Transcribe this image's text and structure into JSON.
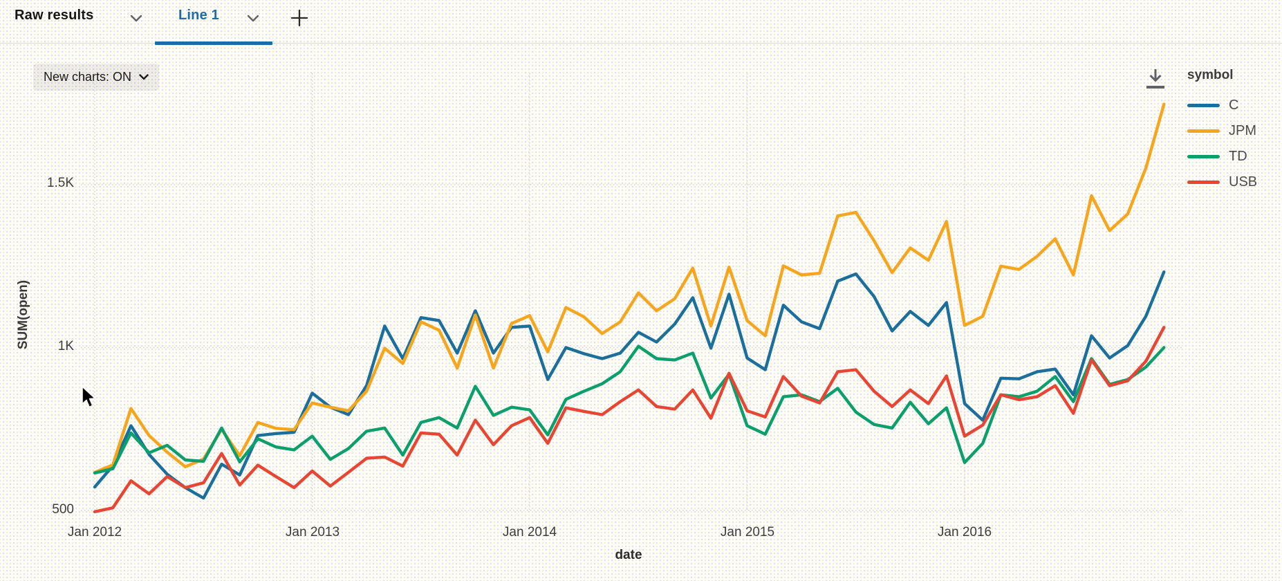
{
  "tabs": {
    "raw_results": "Raw results",
    "active_tab": "Line 1",
    "add_tab": "+"
  },
  "toolbar": {
    "new_charts_label": "New charts: ON"
  },
  "icons": {
    "download": "download-arrow-to-line",
    "chevron_down": "chevron-down"
  },
  "legend": {
    "title": "symbol",
    "items": [
      {
        "label": "C",
        "color": "#1a6f9c"
      },
      {
        "label": "JPM",
        "color": "#f7a51c"
      },
      {
        "label": "TD",
        "color": "#0b9f6c"
      },
      {
        "label": "USB",
        "color": "#e84532"
      }
    ]
  },
  "chart_style": {
    "grid_color": "#d2d0c8",
    "accent_blue": "#1b6ca8"
  },
  "chart_data": {
    "type": "line",
    "title": "",
    "xlabel": "date",
    "ylabel": "SUM(open)",
    "x_start": "2012-01",
    "x_end": "2016-12",
    "x_interval": "monthly",
    "x_ticks": [
      "Jan 2012",
      "Jan 2013",
      "Jan 2014",
      "Jan 2015",
      "Jan 2016"
    ],
    "x_tick_months": [
      0,
      12,
      24,
      36,
      48
    ],
    "y_ticks": [
      "1.5K",
      "1K",
      "500"
    ],
    "y_tick_values": [
      1500,
      1000,
      500
    ],
    "ylim": [
      430,
      1810
    ],
    "grid": true,
    "legend_position": "right",
    "series": [
      {
        "name": "C",
        "color": "#1a6f9c",
        "values": [
          572,
          637,
          760,
          672,
          611,
          570,
          538,
          642,
          609,
          730,
          736,
          740,
          860,
          817,
          794,
          883,
          1066,
          966,
          1092,
          1083,
          983,
          1113,
          983,
          1062,
          1066,
          902,
          1000,
          981,
          966,
          983,
          1047,
          1017,
          1072,
          1153,
          998,
          1164,
          968,
          932,
          1130,
          1079,
          1058,
          1204,
          1226,
          1157,
          1051,
          1111,
          1068,
          1138,
          828,
          777,
          906,
          904,
          926,
          934,
          855,
          1036,
          968,
          1006,
          1096,
          1232
        ]
      },
      {
        "name": "JPM",
        "color": "#f7a51c",
        "values": [
          617,
          640,
          813,
          730,
          679,
          634,
          658,
          749,
          668,
          770,
          752,
          748,
          830,
          817,
          806,
          866,
          998,
          951,
          1079,
          1053,
          937,
          1100,
          937,
          1074,
          1098,
          987,
          1123,
          1094,
          1043,
          1079,
          1168,
          1113,
          1150,
          1244,
          1066,
          1247,
          1083,
          1036,
          1251,
          1223,
          1228,
          1404,
          1415,
          1328,
          1230,
          1306,
          1268,
          1387,
          1068,
          1096,
          1250,
          1240,
          1280,
          1334,
          1223,
          1466,
          1359,
          1410,
          1551,
          1747
        ]
      },
      {
        "name": "TD",
        "color": "#0b9f6c",
        "values": [
          615,
          628,
          738,
          677,
          700,
          655,
          651,
          753,
          649,
          720,
          695,
          686,
          728,
          657,
          690,
          743,
          753,
          670,
          770,
          785,
          753,
          881,
          792,
          817,
          809,
          732,
          841,
          866,
          889,
          926,
          1004,
          966,
          962,
          983,
          845,
          918,
          760,
          734,
          849,
          855,
          834,
          875,
          802,
          764,
          753,
          832,
          766,
          815,
          647,
          706,
          855,
          849,
          866,
          911,
          834,
          966,
          887,
          902,
          940,
          1000
        ]
      },
      {
        "name": "USB",
        "color": "#e84532",
        "values": [
          496,
          508,
          591,
          551,
          604,
          570,
          585,
          675,
          578,
          639,
          604,
          570,
          621,
          575,
          617,
          660,
          664,
          636,
          738,
          734,
          670,
          777,
          702,
          760,
          785,
          706,
          815,
          804,
          794,
          834,
          870,
          819,
          811,
          870,
          783,
          921,
          806,
          787,
          911,
          851,
          830,
          926,
          932,
          866,
          819,
          870,
          828,
          913,
          728,
          762,
          855,
          840,
          849,
          883,
          798,
          962,
          883,
          898,
          958,
          1062
        ]
      }
    ]
  }
}
